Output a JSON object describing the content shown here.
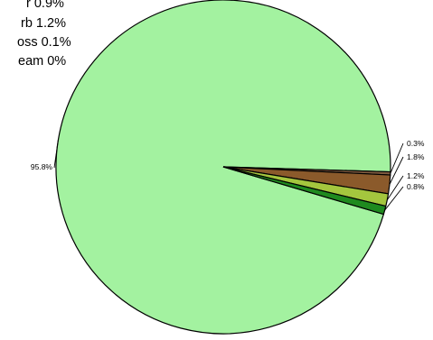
{
  "chart_data": {
    "type": "pie",
    "slices": [
      {
        "value": 95.8,
        "label": "95.8%",
        "color": "#a3f2a0"
      },
      {
        "value": 0.3,
        "label": "0.3%",
        "color": "#7d5a3f"
      },
      {
        "value": 1.8,
        "label": "1.8%",
        "color": "#8b5a2b"
      },
      {
        "value": 1.2,
        "label": "1.2%",
        "color": "#a4c63e"
      },
      {
        "value": 0.8,
        "label": "0.8%",
        "color": "#1f8a1f"
      }
    ],
    "legend": [
      {
        "text": "r 0.9%"
      },
      {
        "text": "rb 1.2%"
      },
      {
        "text": "oss 0.1%"
      },
      {
        "text": "eam 0%"
      }
    ]
  }
}
